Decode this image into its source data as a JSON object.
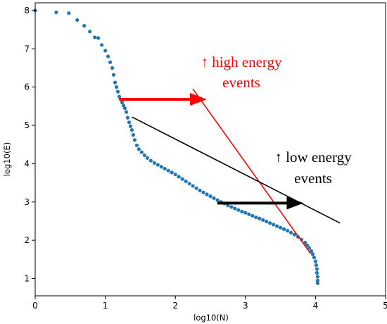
{
  "chart_data": {
    "type": "scatter",
    "title": "",
    "xlabel": "log10(N)",
    "ylabel": "log10(E)",
    "xlim": [
      0,
      5
    ],
    "ylim": [
      0.55,
      8.2
    ],
    "x_ticks": [
      "0",
      "1",
      "2",
      "3",
      "4",
      "5"
    ],
    "y_ticks": [
      "1",
      "2",
      "3",
      "4",
      "5",
      "6",
      "7",
      "8"
    ],
    "grid": false,
    "point_color": "#1f77b4",
    "points": [
      [
        0.0,
        8.0
      ],
      [
        0.3,
        7.95
      ],
      [
        0.48,
        7.93
      ],
      [
        0.6,
        7.75
      ],
      [
        0.7,
        7.6
      ],
      [
        0.78,
        7.45
      ],
      [
        0.85,
        7.3
      ],
      [
        0.9,
        7.28
      ],
      [
        0.95,
        7.1
      ],
      [
        1.0,
        6.95
      ],
      [
        1.04,
        6.8
      ],
      [
        1.07,
        6.65
      ],
      [
        1.1,
        6.5
      ],
      [
        1.12,
        6.32
      ],
      [
        1.14,
        6.12
      ],
      [
        1.16,
        6.0
      ],
      [
        1.18,
        5.88
      ],
      [
        1.2,
        5.75
      ],
      [
        1.22,
        5.68
      ],
      [
        1.24,
        5.6
      ],
      [
        1.26,
        5.52
      ],
      [
        1.28,
        5.45
      ],
      [
        1.3,
        5.35
      ],
      [
        1.32,
        5.2
      ],
      [
        1.34,
        5.08
      ],
      [
        1.36,
        4.98
      ],
      [
        1.38,
        4.88
      ],
      [
        1.4,
        4.75
      ],
      [
        1.42,
        4.62
      ],
      [
        1.45,
        4.48
      ],
      [
        1.48,
        4.38
      ],
      [
        1.52,
        4.3
      ],
      [
        1.56,
        4.22
      ],
      [
        1.6,
        4.15
      ],
      [
        1.65,
        4.08
      ],
      [
        1.7,
        4.02
      ],
      [
        1.75,
        3.97
      ],
      [
        1.8,
        3.92
      ],
      [
        1.85,
        3.87
      ],
      [
        1.9,
        3.82
      ],
      [
        1.95,
        3.77
      ],
      [
        2.0,
        3.72
      ],
      [
        2.05,
        3.66
      ],
      [
        2.1,
        3.6
      ],
      [
        2.15,
        3.54
      ],
      [
        2.2,
        3.48
      ],
      [
        2.25,
        3.42
      ],
      [
        2.3,
        3.36
      ],
      [
        2.35,
        3.3
      ],
      [
        2.4,
        3.25
      ],
      [
        2.45,
        3.2
      ],
      [
        2.5,
        3.15
      ],
      [
        2.55,
        3.1
      ],
      [
        2.6,
        3.05
      ],
      [
        2.65,
        3.0
      ],
      [
        2.7,
        2.96
      ],
      [
        2.75,
        2.91
      ],
      [
        2.8,
        2.87
      ],
      [
        2.85,
        2.83
      ],
      [
        2.9,
        2.79
      ],
      [
        2.95,
        2.75
      ],
      [
        3.0,
        2.72
      ],
      [
        3.05,
        2.68
      ],
      [
        3.1,
        2.64
      ],
      [
        3.15,
        2.6
      ],
      [
        3.2,
        2.57
      ],
      [
        3.25,
        2.53
      ],
      [
        3.3,
        2.49
      ],
      [
        3.35,
        2.45
      ],
      [
        3.4,
        2.41
      ],
      [
        3.45,
        2.37
      ],
      [
        3.5,
        2.33
      ],
      [
        3.55,
        2.29
      ],
      [
        3.6,
        2.25
      ],
      [
        3.65,
        2.2
      ],
      [
        3.7,
        2.15
      ],
      [
        3.75,
        2.09
      ],
      [
        3.8,
        2.02
      ],
      [
        3.85,
        1.94
      ],
      [
        3.88,
        1.87
      ],
      [
        3.91,
        1.8
      ],
      [
        3.94,
        1.72
      ],
      [
        3.96,
        1.64
      ],
      [
        3.98,
        1.55
      ],
      [
        4.0,
        1.45
      ],
      [
        4.01,
        1.35
      ],
      [
        4.02,
        1.25
      ],
      [
        4.02,
        1.15
      ],
      [
        4.03,
        1.05
      ],
      [
        4.03,
        0.95
      ],
      [
        4.03,
        0.88
      ]
    ],
    "annotations": [
      {
        "text": "↑ high energy",
        "color": "#ff0000"
      },
      {
        "text": "events",
        "color": "#ff0000"
      },
      {
        "text": "↑ low energy",
        "color": "#000000"
      },
      {
        "text": "events",
        "color": "#000000"
      }
    ],
    "overlay_lines": [
      {
        "name": "red-fit-line",
        "color": "#ff0000",
        "from": [
          2.25,
          5.95
        ],
        "to": [
          3.93,
          1.65
        ]
      },
      {
        "name": "black-fit-line",
        "color": "#000000",
        "from": [
          1.38,
          5.22
        ],
        "to": [
          4.35,
          2.45
        ]
      }
    ],
    "arrows": [
      {
        "name": "red-arrow",
        "color": "#ff0000",
        "from": [
          1.2,
          5.68
        ],
        "to": [
          2.45,
          5.68
        ]
      },
      {
        "name": "black-arrow",
        "color": "#000000",
        "from": [
          2.6,
          2.97
        ],
        "to": [
          3.83,
          2.97
        ]
      }
    ]
  }
}
